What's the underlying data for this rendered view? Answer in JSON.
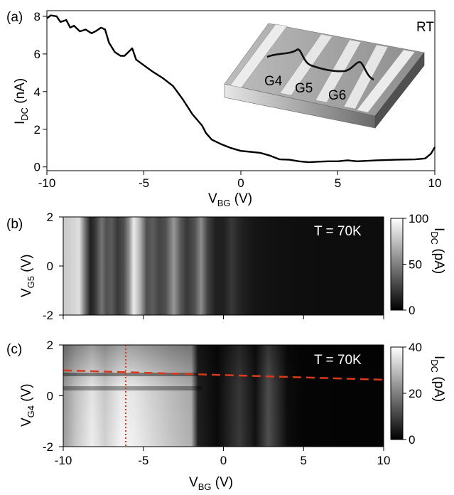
{
  "colors": {
    "trace": "#000000",
    "dashed_line": "#d83a1a",
    "dotted_line": "#d83a1a",
    "map_bright": "#f2f2f2",
    "map_dark": "#050505"
  },
  "chart_data": [
    {
      "type": "line",
      "panel_label": "(a)",
      "xlabel_main": "V",
      "xlabel_sub": "BG",
      "xlabel_unit": " (V)",
      "ylabel_main": "I",
      "ylabel_sub": "DC",
      "ylabel_unit": " (nA)",
      "corner_label": "RT",
      "xlim": [
        -10,
        10
      ],
      "ylim": [
        -0.2,
        8.3
      ],
      "xticks": [
        -10,
        -5,
        0,
        5,
        10
      ],
      "yticks": [
        0,
        2,
        4,
        6,
        8
      ],
      "xtick_labels": [
        "-10",
        "-5",
        "0",
        "5",
        "10"
      ],
      "ytick_labels": [
        "0",
        "2",
        "4",
        "6",
        "8"
      ],
      "inset_labels": [
        "G4",
        "G5",
        "G6"
      ],
      "series": [
        {
          "x": [
            -10,
            -9.8,
            -9.5,
            -9.3,
            -9.0,
            -8.8,
            -8.6,
            -8.3,
            -8.0,
            -7.7,
            -7.5,
            -7.2,
            -7.0,
            -6.8,
            -6.5,
            -6.2,
            -6.0,
            -5.8,
            -5.6,
            -5.4,
            -5.0,
            -4.6,
            -4.3,
            -4.0,
            -3.5,
            -3.0,
            -2.5,
            -2.0,
            -1.8,
            -1.5,
            -1.0,
            -0.5,
            0.0,
            0.5,
            1.0,
            1.5,
            2.0,
            2.5,
            3.0,
            3.5,
            4.0,
            4.5,
            5.0,
            5.5,
            6.0,
            7.0,
            8.0,
            9.0,
            9.5,
            9.8,
            10.0
          ],
          "y": [
            7.9,
            8.05,
            8.0,
            7.7,
            7.8,
            7.4,
            7.5,
            7.2,
            7.3,
            7.1,
            7.2,
            7.4,
            7.3,
            6.6,
            6.1,
            5.9,
            5.9,
            6.1,
            6.3,
            5.7,
            5.4,
            5.1,
            4.9,
            4.7,
            4.3,
            3.6,
            2.8,
            2.2,
            1.8,
            1.45,
            1.2,
            1.0,
            0.85,
            0.8,
            0.75,
            0.6,
            0.4,
            0.38,
            0.3,
            0.25,
            0.28,
            0.3,
            0.3,
            0.35,
            0.3,
            0.35,
            0.38,
            0.4,
            0.45,
            0.7,
            1.05
          ]
        }
      ]
    },
    {
      "type": "heatmap",
      "panel_label": "(b)",
      "annotation": "T = 70K",
      "ylabel_main": "V",
      "ylabel_sub": "G5",
      "ylabel_unit": " (V)",
      "colorbar_label_main": "I",
      "colorbar_label_sub": "DC",
      "colorbar_label_unit": " (pA)",
      "xlim": [
        -10,
        10
      ],
      "ylim": [
        -2,
        2
      ],
      "yticks": [
        -2,
        0,
        2
      ],
      "ytick_labels": [
        "-2",
        "0",
        "2"
      ],
      "colorbar_range": [
        0,
        100
      ],
      "colorbar_ticks": [
        0,
        50,
        100
      ],
      "colorbar_tick_labels": [
        "0",
        "50",
        "100"
      ],
      "intensity_profile_x": [
        -10,
        -9.4,
        -9.0,
        -8.6,
        -8.3,
        -8.0,
        -7.6,
        -7.3,
        -7.0,
        -6.6,
        -6.2,
        -5.9,
        -5.6,
        -5.2,
        -4.8,
        -4.4,
        -4.0,
        -3.6,
        -3.1,
        -2.7,
        -2.3,
        -1.8,
        -1.4,
        -1.0,
        -0.5,
        0.0,
        0.5,
        1.0,
        1.5,
        2.0,
        3.0,
        4.0,
        6.0,
        8.0,
        10.0
      ],
      "intensity_profile_value": [
        80,
        85,
        90,
        40,
        10,
        20,
        45,
        30,
        35,
        20,
        30,
        55,
        95,
        70,
        30,
        35,
        25,
        30,
        60,
        35,
        20,
        30,
        55,
        25,
        10,
        10,
        20,
        12,
        8,
        5,
        4,
        3,
        2,
        2,
        2
      ]
    },
    {
      "type": "heatmap",
      "panel_label": "(c)",
      "annotation": "T = 70K",
      "xlabel_main": "V",
      "xlabel_sub": "BG",
      "xlabel_unit": " (V)",
      "ylabel_main": "V",
      "ylabel_sub": "G4",
      "ylabel_unit": " (V)",
      "colorbar_label_main": "I",
      "colorbar_label_sub": "DC",
      "colorbar_label_unit": " (pA)",
      "xlim": [
        -10,
        10
      ],
      "ylim": [
        -2,
        2
      ],
      "xticks": [
        -10,
        -5,
        0,
        5,
        10
      ],
      "xtick_labels": [
        "-10",
        "-5",
        "0",
        "5",
        "10"
      ],
      "yticks": [
        -2,
        0,
        2
      ],
      "ytick_labels": [
        "-2",
        "0",
        "2"
      ],
      "colorbar_range": [
        0,
        40
      ],
      "colorbar_ticks": [
        0,
        20,
        40
      ],
      "colorbar_tick_labels": [
        "0",
        "20",
        "40"
      ],
      "dashed_line": {
        "x": [
          -10,
          10
        ],
        "y": [
          1.0,
          0.63
        ]
      },
      "dotted_line": {
        "x": [
          -6.1,
          -6.1
        ],
        "y": [
          2,
          -2
        ]
      }
    }
  ]
}
